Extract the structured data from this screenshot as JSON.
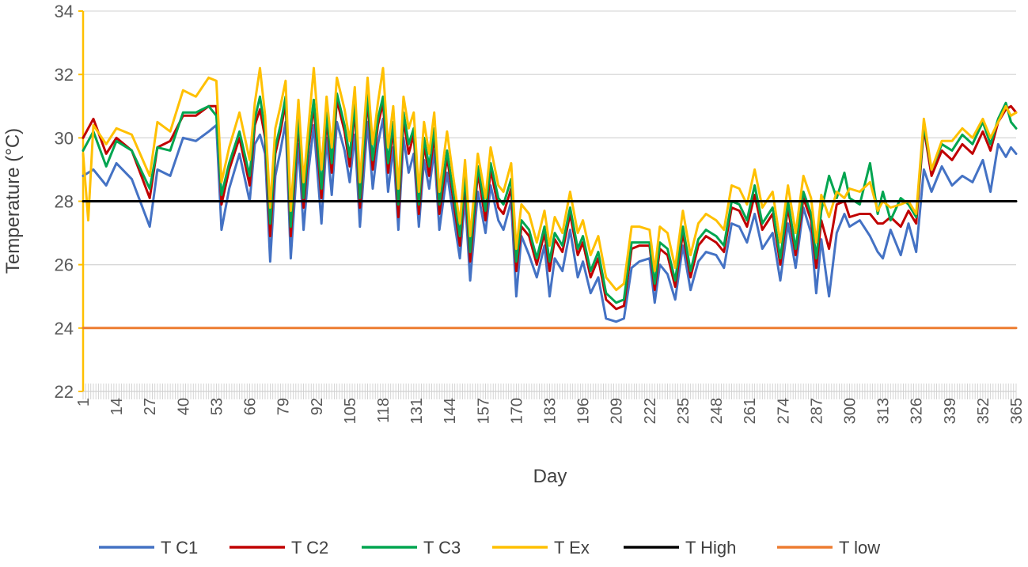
{
  "chart_data": {
    "type": "line",
    "title": "",
    "xlabel": "Day",
    "ylabel": "Temperature (°C)",
    "ylim": [
      22,
      34
    ],
    "y_ticks": [
      "22",
      "24",
      "26",
      "28",
      "30",
      "32",
      "34"
    ],
    "x_range": [
      1,
      365
    ],
    "x_ticks": [
      "1",
      "14",
      "27",
      "40",
      "53",
      "66",
      "79",
      "92",
      "105",
      "118",
      "131",
      "144",
      "157",
      "170",
      "183",
      "196",
      "209",
      "222",
      "235",
      "248",
      "261",
      "274",
      "287",
      "300",
      "313",
      "326",
      "339",
      "352",
      "365"
    ],
    "grid": "horizontal",
    "legend_position": "bottom",
    "series": [
      {
        "name": "T C1",
        "color": "#4472C4",
        "x": [
          1,
          5,
          10,
          14,
          20,
          27,
          30,
          35,
          40,
          45,
          50,
          53,
          55,
          58,
          62,
          66,
          68,
          70,
          72,
          74,
          76,
          78,
          80,
          82,
          85,
          87,
          89,
          91,
          94,
          96,
          98,
          100,
          103,
          105,
          107,
          109,
          112,
          114,
          116,
          118,
          120,
          122,
          124,
          126,
          128,
          130,
          132,
          134,
          136,
          138,
          140,
          143,
          145,
          148,
          150,
          152,
          155,
          158,
          160,
          163,
          165,
          168,
          170,
          172,
          175,
          178,
          181,
          183,
          185,
          188,
          191,
          194,
          196,
          199,
          202,
          205,
          209,
          212,
          215,
          218,
          222,
          224,
          226,
          229,
          232,
          235,
          238,
          241,
          244,
          248,
          251,
          254,
          257,
          260,
          263,
          266,
          270,
          273,
          276,
          279,
          282,
          285,
          287,
          289,
          292,
          295,
          298,
          300,
          304,
          308,
          311,
          313,
          316,
          320,
          323,
          326,
          329,
          332,
          336,
          340,
          344,
          348,
          352,
          355,
          358,
          361,
          363,
          365
        ],
        "values": [
          28.8,
          29.0,
          28.5,
          29.2,
          28.7,
          27.2,
          29.0,
          28.8,
          30.0,
          29.9,
          30.2,
          30.4,
          27.1,
          28.4,
          29.5,
          28.0,
          29.8,
          30.1,
          29.5,
          26.1,
          28.8,
          29.6,
          30.5,
          26.2,
          29.8,
          27.1,
          29.0,
          30.4,
          27.3,
          30.0,
          28.2,
          30.5,
          29.6,
          28.6,
          30.1,
          27.2,
          30.5,
          28.4,
          29.8,
          30.6,
          28.3,
          29.7,
          27.1,
          30.0,
          28.9,
          29.5,
          27.2,
          29.3,
          28.4,
          29.6,
          27.1,
          28.9,
          27.8,
          26.2,
          28.1,
          25.5,
          28.3,
          27.0,
          28.5,
          27.4,
          27.1,
          28.0,
          25.0,
          26.9,
          26.3,
          25.6,
          26.6,
          25.0,
          26.2,
          25.8,
          27.1,
          25.6,
          26.1,
          25.1,
          25.6,
          24.3,
          24.2,
          24.3,
          25.9,
          26.1,
          26.2,
          24.8,
          26.0,
          25.7,
          24.9,
          26.6,
          25.2,
          26.1,
          26.4,
          26.3,
          25.9,
          27.3,
          27.2,
          26.7,
          27.6,
          26.5,
          27.0,
          25.5,
          27.3,
          25.9,
          27.8,
          27.0,
          25.1,
          26.8,
          25.0,
          27.0,
          27.6,
          27.2,
          27.4,
          26.9,
          26.4,
          26.2,
          27.1,
          26.3,
          27.3,
          26.4,
          29.0,
          28.3,
          29.1,
          28.5,
          28.8,
          28.6,
          29.3,
          28.3,
          29.8,
          29.4,
          29.7,
          29.5
        ]
      },
      {
        "name": "T C2",
        "color": "#C00000",
        "x": [
          1,
          5,
          10,
          14,
          20,
          27,
          30,
          35,
          40,
          45,
          50,
          53,
          55,
          58,
          62,
          66,
          68,
          70,
          72,
          74,
          76,
          78,
          80,
          82,
          85,
          87,
          89,
          91,
          94,
          96,
          98,
          100,
          103,
          105,
          107,
          109,
          112,
          114,
          116,
          118,
          120,
          122,
          124,
          126,
          128,
          130,
          132,
          134,
          136,
          138,
          140,
          143,
          145,
          148,
          150,
          152,
          155,
          158,
          160,
          163,
          165,
          168,
          170,
          172,
          175,
          178,
          181,
          183,
          185,
          188,
          191,
          194,
          196,
          199,
          202,
          205,
          209,
          212,
          215,
          218,
          222,
          224,
          226,
          229,
          232,
          235,
          238,
          241,
          244,
          248,
          251,
          254,
          257,
          260,
          263,
          266,
          270,
          273,
          276,
          279,
          282,
          285,
          287,
          289,
          292,
          295,
          298,
          300,
          304,
          308,
          311,
          313,
          316,
          320,
          323,
          326,
          329,
          332,
          336,
          340,
          344,
          348,
          352,
          355,
          358,
          361,
          363,
          365
        ],
        "values": [
          30.0,
          30.6,
          29.5,
          30.0,
          29.6,
          28.1,
          29.7,
          29.9,
          30.7,
          30.7,
          31.0,
          31.0,
          27.9,
          29.0,
          30.0,
          28.5,
          30.4,
          30.9,
          30.0,
          26.9,
          29.5,
          30.2,
          31.1,
          26.9,
          30.5,
          27.8,
          29.7,
          31.0,
          28.1,
          30.6,
          28.9,
          31.2,
          30.2,
          29.1,
          30.9,
          27.8,
          31.2,
          29.0,
          30.4,
          31.1,
          28.9,
          30.3,
          27.5,
          30.6,
          29.5,
          30.1,
          27.6,
          29.8,
          28.8,
          30.1,
          27.6,
          29.4,
          28.3,
          26.6,
          28.6,
          26.1,
          28.9,
          27.4,
          29.0,
          27.8,
          27.6,
          28.4,
          25.8,
          27.2,
          26.9,
          26.0,
          27.0,
          25.8,
          26.8,
          26.4,
          27.6,
          26.3,
          26.7,
          25.6,
          26.2,
          24.9,
          24.6,
          24.7,
          26.5,
          26.6,
          26.6,
          25.2,
          26.5,
          26.3,
          25.3,
          27.0,
          25.6,
          26.6,
          26.9,
          26.7,
          26.4,
          27.8,
          27.7,
          27.2,
          28.2,
          27.1,
          27.6,
          26.0,
          27.8,
          26.3,
          28.1,
          27.4,
          25.9,
          27.4,
          26.5,
          27.9,
          28.0,
          27.5,
          27.6,
          27.6,
          27.3,
          27.3,
          27.5,
          27.2,
          27.7,
          27.3,
          30.3,
          28.8,
          29.6,
          29.3,
          29.8,
          29.5,
          30.2,
          29.6,
          30.5,
          30.9,
          31.0,
          30.8
        ]
      },
      {
        "name": "T C3",
        "color": "#00A550",
        "x": [
          1,
          5,
          10,
          14,
          20,
          27,
          30,
          35,
          40,
          45,
          50,
          53,
          55,
          58,
          62,
          66,
          68,
          70,
          72,
          74,
          76,
          78,
          80,
          82,
          85,
          87,
          89,
          91,
          94,
          96,
          98,
          100,
          103,
          105,
          107,
          109,
          112,
          114,
          116,
          118,
          120,
          122,
          124,
          126,
          128,
          130,
          132,
          134,
          136,
          138,
          140,
          143,
          145,
          148,
          150,
          152,
          155,
          158,
          160,
          163,
          165,
          168,
          170,
          172,
          175,
          178,
          181,
          183,
          185,
          188,
          191,
          194,
          196,
          199,
          202,
          205,
          209,
          212,
          215,
          218,
          222,
          224,
          226,
          229,
          232,
          235,
          238,
          241,
          244,
          248,
          251,
          254,
          257,
          260,
          263,
          266,
          270,
          273,
          276,
          279,
          282,
          285,
          287,
          289,
          292,
          295,
          298,
          300,
          304,
          308,
          311,
          313,
          316,
          320,
          323,
          326,
          329,
          332,
          336,
          340,
          344,
          348,
          352,
          355,
          358,
          361,
          363,
          365
        ],
        "values": [
          29.6,
          30.2,
          29.1,
          29.9,
          29.6,
          28.4,
          29.7,
          29.6,
          30.8,
          30.8,
          31.0,
          30.7,
          28.2,
          29.2,
          30.2,
          28.8,
          30.6,
          31.3,
          30.2,
          27.3,
          29.7,
          30.4,
          31.3,
          27.2,
          30.7,
          28.1,
          29.9,
          31.2,
          28.4,
          30.8,
          29.2,
          31.4,
          30.4,
          29.4,
          31.1,
          28.1,
          31.4,
          29.3,
          30.6,
          31.3,
          29.2,
          30.5,
          27.9,
          30.8,
          29.8,
          30.3,
          27.9,
          30.0,
          29.1,
          30.3,
          27.9,
          29.6,
          28.5,
          26.9,
          28.8,
          26.4,
          29.1,
          27.7,
          29.2,
          28.1,
          27.9,
          28.7,
          26.1,
          27.4,
          27.1,
          26.2,
          27.2,
          26.1,
          27.0,
          26.6,
          27.8,
          26.5,
          26.9,
          25.8,
          26.4,
          25.1,
          24.8,
          24.9,
          26.7,
          26.7,
          26.7,
          25.4,
          26.7,
          26.5,
          25.5,
          27.2,
          25.8,
          26.8,
          27.1,
          26.9,
          26.6,
          28.0,
          27.9,
          27.4,
          28.5,
          27.3,
          27.8,
          26.2,
          28.0,
          26.5,
          28.3,
          27.6,
          26.2,
          27.7,
          28.8,
          28.1,
          28.9,
          28.1,
          27.9,
          29.2,
          27.6,
          28.3,
          27.4,
          28.1,
          27.9,
          27.5,
          30.4,
          29.0,
          29.8,
          29.6,
          30.1,
          29.8,
          30.5,
          29.8,
          30.6,
          31.1,
          30.5,
          30.3
        ]
      },
      {
        "name": "T Ex",
        "color": "#FFC000",
        "x": [
          1,
          3,
          5,
          10,
          14,
          20,
          27,
          30,
          35,
          40,
          45,
          50,
          53,
          55,
          58,
          62,
          66,
          68,
          70,
          72,
          74,
          76,
          78,
          80,
          82,
          85,
          87,
          89,
          91,
          94,
          96,
          98,
          100,
          103,
          105,
          107,
          109,
          112,
          114,
          116,
          118,
          120,
          122,
          124,
          126,
          128,
          130,
          132,
          134,
          136,
          138,
          140,
          143,
          145,
          148,
          150,
          152,
          155,
          158,
          160,
          163,
          165,
          168,
          170,
          172,
          175,
          178,
          181,
          183,
          185,
          188,
          191,
          194,
          196,
          199,
          202,
          205,
          209,
          212,
          215,
          218,
          222,
          224,
          226,
          229,
          232,
          235,
          238,
          241,
          244,
          248,
          251,
          254,
          257,
          260,
          263,
          266,
          270,
          273,
          276,
          279,
          282,
          285,
          287,
          289,
          292,
          295,
          298,
          300,
          304,
          308,
          311,
          313,
          316,
          320,
          323,
          326,
          329,
          332,
          336,
          340,
          344,
          348,
          352,
          355,
          358,
          361,
          363,
          365
        ],
        "values": [
          29.5,
          27.4,
          30.4,
          29.8,
          30.3,
          30.1,
          28.8,
          30.5,
          30.2,
          31.5,
          31.3,
          31.9,
          31.8,
          28.6,
          29.7,
          30.8,
          29.3,
          31.1,
          32.2,
          30.7,
          27.8,
          30.3,
          31.0,
          31.8,
          27.7,
          31.2,
          28.6,
          30.4,
          32.2,
          29.0,
          31.3,
          29.7,
          31.9,
          30.9,
          29.9,
          31.6,
          28.6,
          31.9,
          29.8,
          31.1,
          32.2,
          29.7,
          31.0,
          28.4,
          31.3,
          30.3,
          30.8,
          28.3,
          30.5,
          29.5,
          30.8,
          28.3,
          30.2,
          29.0,
          27.3,
          29.3,
          26.9,
          29.5,
          28.1,
          29.7,
          28.5,
          28.3,
          29.2,
          26.5,
          27.9,
          27.6,
          26.7,
          27.7,
          26.6,
          27.5,
          27.0,
          28.3,
          27.0,
          27.4,
          26.3,
          26.9,
          25.6,
          25.2,
          25.4,
          27.2,
          27.2,
          27.1,
          25.8,
          27.2,
          27.0,
          25.9,
          27.7,
          26.3,
          27.3,
          27.6,
          27.4,
          27.1,
          28.5,
          28.4,
          27.9,
          29.0,
          27.8,
          28.3,
          26.7,
          28.5,
          27.0,
          28.8,
          28.1,
          26.7,
          28.2,
          27.5,
          28.3,
          28.1,
          28.4,
          28.3,
          28.6,
          27.7,
          28.0,
          27.8,
          27.9,
          28.0,
          27.6,
          30.6,
          29.0,
          29.9,
          29.9,
          30.3,
          30.0,
          30.6,
          30.0,
          30.5,
          31.0,
          30.7,
          30.8
        ]
      },
      {
        "name": "T High",
        "color": "#000000",
        "x": [
          1,
          365
        ],
        "values": [
          28,
          28
        ]
      },
      {
        "name": "T low",
        "color": "#ED7D31",
        "x": [
          1,
          365
        ],
        "values": [
          24,
          24
        ]
      }
    ]
  }
}
